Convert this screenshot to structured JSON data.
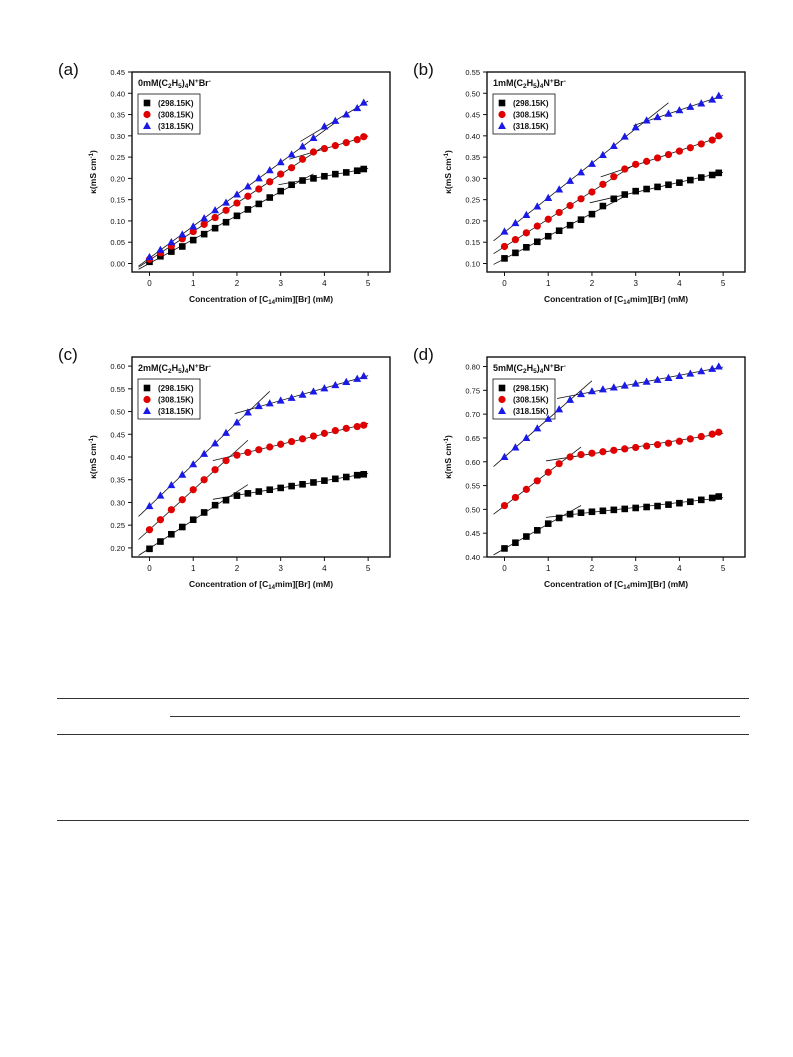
{
  "chart_data": [
    {
      "type": "scatter",
      "panel_label": "(a)",
      "title": "0mM(C2H5)4N+Br-",
      "title_parts": {
        "main": "0mM(C",
        "sub1": "2",
        "mid1": "H",
        "sub2": "5",
        "mid2": ")",
        "sub3": "4",
        "mid3": "N",
        "sup1": "+",
        "mid4": "Br",
        "sup2": "-"
      },
      "xlabel": "Concentration of [C14mim][Br] (mM)",
      "xlabel_parts": {
        "pre": "Concentration of [C",
        "sub": "14",
        "post": "mim][Br] (mM)"
      },
      "ylabel": "κ(mS cm-1)",
      "ylabel_parts": {
        "pre": "κ(mS cm",
        "sup": "-1",
        "post": ")"
      },
      "xlim": [
        -0.4,
        5.5
      ],
      "ylim": [
        -0.02,
        0.45
      ],
      "xticks": [
        0,
        1,
        2,
        3,
        4,
        5
      ],
      "yticks": [
        0.0,
        0.05,
        0.1,
        0.15,
        0.2,
        0.25,
        0.3,
        0.35,
        0.4,
        0.45
      ],
      "legend": "top-left",
      "series": [
        {
          "name": "(298.15K)",
          "marker": "square",
          "color": "#000000",
          "x": [
            0,
            0.25,
            0.5,
            0.75,
            1.0,
            1.25,
            1.5,
            1.75,
            2.0,
            2.25,
            2.5,
            2.75,
            3.0,
            3.25,
            3.5,
            3.75,
            4.0,
            4.25,
            4.5,
            4.75,
            4.9
          ],
          "y": [
            0.004,
            0.017,
            0.028,
            0.04,
            0.055,
            0.069,
            0.083,
            0.097,
            0.112,
            0.127,
            0.14,
            0.155,
            0.17,
            0.185,
            0.195,
            0.2,
            0.205,
            0.21,
            0.214,
            0.218,
            0.222
          ]
        },
        {
          "name": "(308.15K)",
          "marker": "circle",
          "color": "#e00000",
          "x": [
            0,
            0.25,
            0.5,
            0.75,
            1.0,
            1.25,
            1.5,
            1.75,
            2.0,
            2.25,
            2.5,
            2.75,
            3.0,
            3.25,
            3.5,
            3.75,
            4.0,
            4.25,
            4.5,
            4.75,
            4.9
          ],
          "y": [
            0.01,
            0.025,
            0.041,
            0.058,
            0.075,
            0.092,
            0.108,
            0.125,
            0.142,
            0.158,
            0.175,
            0.192,
            0.21,
            0.225,
            0.245,
            0.262,
            0.27,
            0.277,
            0.284,
            0.291,
            0.298
          ]
        },
        {
          "name": "(318.15K)",
          "marker": "triangle",
          "color": "#1a1ae6",
          "x": [
            0,
            0.25,
            0.5,
            0.75,
            1.0,
            1.25,
            1.5,
            1.75,
            2.0,
            2.25,
            2.5,
            2.75,
            3.0,
            3.25,
            3.5,
            3.75,
            4.0,
            4.25,
            4.5,
            4.75,
            4.9
          ],
          "y": [
            0.015,
            0.032,
            0.05,
            0.068,
            0.087,
            0.106,
            0.125,
            0.143,
            0.162,
            0.181,
            0.2,
            0.219,
            0.238,
            0.256,
            0.275,
            0.295,
            0.322,
            0.335,
            0.35,
            0.365,
            0.378
          ]
        }
      ]
    },
    {
      "type": "scatter",
      "panel_label": "(b)",
      "title": "1mM(C2H5)4N+Br-",
      "title_parts": {
        "main": "1mM(C",
        "sub1": "2",
        "mid1": "H",
        "sub2": "5",
        "mid2": ")",
        "sub3": "4",
        "mid3": "N",
        "sup1": "+",
        "mid4": "Br",
        "sup2": "-"
      },
      "xlabel": "Concentration of [C14mim][Br] (mM)",
      "xlabel_parts": {
        "pre": "Concentration of [C",
        "sub": "14",
        "post": "mim][Br] (mM)"
      },
      "ylabel": "κ(mS cm-1)",
      "ylabel_parts": {
        "pre": "κ(mS cm",
        "sup": "-1",
        "post": ")"
      },
      "xlim": [
        -0.4,
        5.5
      ],
      "ylim": [
        0.08,
        0.55
      ],
      "xticks": [
        0,
        1,
        2,
        3,
        4,
        5
      ],
      "yticks": [
        0.1,
        0.15,
        0.2,
        0.25,
        0.3,
        0.35,
        0.4,
        0.45,
        0.5,
        0.55
      ],
      "legend": "top-left",
      "series": [
        {
          "name": "(298.15K)",
          "marker": "square",
          "color": "#000000",
          "x": [
            0,
            0.25,
            0.5,
            0.75,
            1.0,
            1.25,
            1.5,
            1.75,
            2.0,
            2.25,
            2.5,
            2.75,
            3.0,
            3.25,
            3.5,
            3.75,
            4.0,
            4.25,
            4.5,
            4.75,
            4.9
          ],
          "y": [
            0.112,
            0.125,
            0.138,
            0.151,
            0.164,
            0.177,
            0.19,
            0.203,
            0.216,
            0.235,
            0.252,
            0.262,
            0.27,
            0.275,
            0.28,
            0.285,
            0.29,
            0.296,
            0.302,
            0.308,
            0.313
          ]
        },
        {
          "name": "(308.15K)",
          "marker": "circle",
          "color": "#e00000",
          "x": [
            0,
            0.25,
            0.5,
            0.75,
            1.0,
            1.25,
            1.5,
            1.75,
            2.0,
            2.25,
            2.5,
            2.75,
            3.0,
            3.25,
            3.5,
            3.75,
            4.0,
            4.25,
            4.5,
            4.75,
            4.9
          ],
          "y": [
            0.14,
            0.156,
            0.172,
            0.188,
            0.204,
            0.22,
            0.236,
            0.252,
            0.268,
            0.286,
            0.304,
            0.322,
            0.333,
            0.34,
            0.348,
            0.356,
            0.364,
            0.372,
            0.381,
            0.39,
            0.4
          ]
        },
        {
          "name": "(318.15K)",
          "marker": "triangle",
          "color": "#1a1ae6",
          "x": [
            0,
            0.25,
            0.5,
            0.75,
            1.0,
            1.25,
            1.5,
            1.75,
            2.0,
            2.25,
            2.5,
            2.75,
            3.0,
            3.25,
            3.5,
            3.75,
            4.0,
            4.25,
            4.5,
            4.75,
            4.9
          ],
          "y": [
            0.175,
            0.195,
            0.214,
            0.234,
            0.254,
            0.274,
            0.294,
            0.314,
            0.334,
            0.355,
            0.376,
            0.398,
            0.42,
            0.436,
            0.444,
            0.452,
            0.46,
            0.468,
            0.476,
            0.485,
            0.494
          ]
        }
      ]
    },
    {
      "type": "scatter",
      "panel_label": "(c)",
      "title": "2mM(C2H5)4N+Br-",
      "title_parts": {
        "main": "2mM(C",
        "sub1": "2",
        "mid1": "H",
        "sub2": "5",
        "mid2": ")",
        "sub3": "4",
        "mid3": "N",
        "sup1": "+",
        "mid4": "Br",
        "sup2": "-"
      },
      "xlabel": "Concentration of [C14mim][Br] (mM)",
      "xlabel_parts": {
        "pre": "Concentration of [C",
        "sub": "14",
        "post": "mim][Br] (mM)"
      },
      "ylabel": "κ(mS cm-1)",
      "ylabel_parts": {
        "pre": "κ(mS cm",
        "sup": "-1",
        "post": ")"
      },
      "xlim": [
        -0.4,
        5.5
      ],
      "ylim": [
        0.18,
        0.62
      ],
      "xticks": [
        0,
        1,
        2,
        3,
        4,
        5
      ],
      "yticks": [
        0.2,
        0.25,
        0.3,
        0.35,
        0.4,
        0.45,
        0.5,
        0.55,
        0.6
      ],
      "legend": "top-left",
      "series": [
        {
          "name": "(298.15K)",
          "marker": "square",
          "color": "#000000",
          "x": [
            0,
            0.25,
            0.5,
            0.75,
            1.0,
            1.25,
            1.5,
            1.75,
            2.0,
            2.25,
            2.5,
            2.75,
            3.0,
            3.25,
            3.5,
            3.75,
            4.0,
            4.25,
            4.5,
            4.75,
            4.9
          ],
          "y": [
            0.198,
            0.214,
            0.23,
            0.246,
            0.262,
            0.278,
            0.294,
            0.305,
            0.315,
            0.32,
            0.324,
            0.328,
            0.332,
            0.336,
            0.34,
            0.344,
            0.348,
            0.352,
            0.356,
            0.36,
            0.362
          ]
        },
        {
          "name": "(308.15K)",
          "marker": "circle",
          "color": "#e00000",
          "x": [
            0,
            0.25,
            0.5,
            0.75,
            1.0,
            1.25,
            1.5,
            1.75,
            2.0,
            2.25,
            2.5,
            2.75,
            3.0,
            3.25,
            3.5,
            3.75,
            4.0,
            4.25,
            4.5,
            4.75,
            4.9
          ],
          "y": [
            0.24,
            0.262,
            0.284,
            0.306,
            0.328,
            0.35,
            0.372,
            0.392,
            0.404,
            0.41,
            0.416,
            0.422,
            0.428,
            0.434,
            0.44,
            0.446,
            0.452,
            0.458,
            0.463,
            0.467,
            0.47
          ]
        },
        {
          "name": "(318.15K)",
          "marker": "triangle",
          "color": "#1a1ae6",
          "x": [
            0,
            0.25,
            0.5,
            0.75,
            1.0,
            1.25,
            1.5,
            1.75,
            2.0,
            2.25,
            2.5,
            2.75,
            3.0,
            3.25,
            3.5,
            3.75,
            4.0,
            4.25,
            4.5,
            4.75,
            4.9
          ],
          "y": [
            0.292,
            0.315,
            0.338,
            0.361,
            0.384,
            0.407,
            0.43,
            0.453,
            0.476,
            0.498,
            0.512,
            0.518,
            0.524,
            0.53,
            0.537,
            0.544,
            0.551,
            0.558,
            0.565,
            0.572,
            0.578
          ]
        }
      ]
    },
    {
      "type": "scatter",
      "panel_label": "(d)",
      "title": "5mM(C2H5)4N+Br-",
      "title_parts": {
        "main": "5mM(C",
        "sub1": "2",
        "mid1": "H",
        "sub2": "5",
        "mid2": ")",
        "sub3": "4",
        "mid3": "N",
        "sup1": "+",
        "mid4": "Br",
        "sup2": "-"
      },
      "xlabel": "Concentration of [C14mim][Br] (mM)",
      "xlabel_parts": {
        "pre": "Concentration of [C",
        "sub": "14",
        "post": "mim][Br] (mM)"
      },
      "ylabel": "κ(mS cm-1)",
      "ylabel_parts": {
        "pre": "κ(mS cm",
        "sup": "-1",
        "post": ")"
      },
      "xlim": [
        -0.4,
        5.5
      ],
      "ylim": [
        0.4,
        0.82
      ],
      "xticks": [
        0,
        1,
        2,
        3,
        4,
        5
      ],
      "yticks": [
        0.4,
        0.45,
        0.5,
        0.55,
        0.6,
        0.65,
        0.7,
        0.75,
        0.8
      ],
      "legend": "top-left",
      "series": [
        {
          "name": "(298.15K)",
          "marker": "square",
          "color": "#000000",
          "x": [
            0,
            0.25,
            0.5,
            0.75,
            1.0,
            1.25,
            1.5,
            1.75,
            2.0,
            2.25,
            2.5,
            2.75,
            3.0,
            3.25,
            3.5,
            3.75,
            4.0,
            4.25,
            4.5,
            4.75,
            4.9
          ],
          "y": [
            0.418,
            0.43,
            0.443,
            0.456,
            0.47,
            0.482,
            0.49,
            0.493,
            0.495,
            0.497,
            0.499,
            0.501,
            0.503,
            0.505,
            0.507,
            0.51,
            0.513,
            0.516,
            0.52,
            0.524,
            0.527
          ]
        },
        {
          "name": "(308.15K)",
          "marker": "circle",
          "color": "#e00000",
          "x": [
            0,
            0.25,
            0.5,
            0.75,
            1.0,
            1.25,
            1.5,
            1.75,
            2.0,
            2.25,
            2.5,
            2.75,
            3.0,
            3.25,
            3.5,
            3.75,
            4.0,
            4.25,
            4.5,
            4.75,
            4.9
          ],
          "y": [
            0.508,
            0.525,
            0.542,
            0.56,
            0.578,
            0.596,
            0.61,
            0.615,
            0.618,
            0.621,
            0.624,
            0.627,
            0.63,
            0.633,
            0.636,
            0.639,
            0.643,
            0.648,
            0.653,
            0.658,
            0.662
          ]
        },
        {
          "name": "(318.15K)",
          "marker": "triangle",
          "color": "#1a1ae6",
          "x": [
            0,
            0.25,
            0.5,
            0.75,
            1.0,
            1.25,
            1.5,
            1.75,
            2.0,
            2.25,
            2.5,
            2.75,
            3.0,
            3.25,
            3.5,
            3.75,
            4.0,
            4.25,
            4.5,
            4.75,
            4.9
          ],
          "y": [
            0.61,
            0.63,
            0.65,
            0.67,
            0.69,
            0.71,
            0.73,
            0.742,
            0.748,
            0.752,
            0.756,
            0.76,
            0.764,
            0.768,
            0.772,
            0.776,
            0.78,
            0.785,
            0.79,
            0.795,
            0.8
          ]
        }
      ]
    }
  ]
}
